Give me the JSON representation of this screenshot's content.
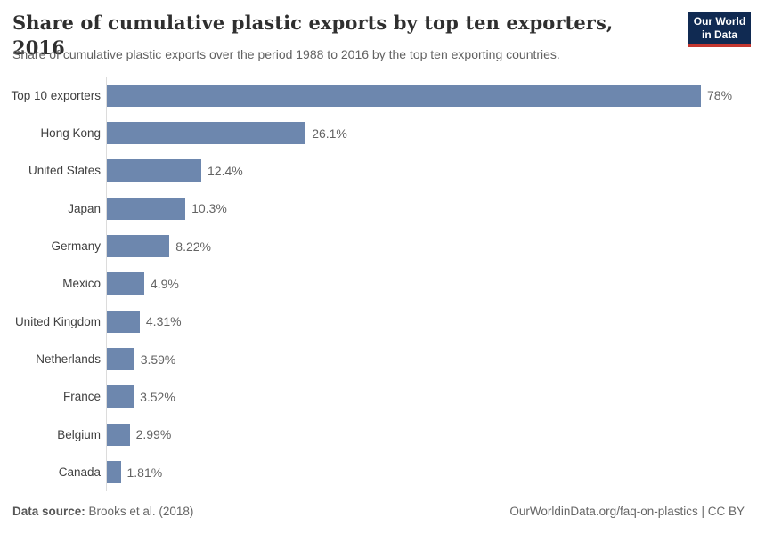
{
  "header": {
    "title": "Share of cumulative plastic exports by top ten exporters, 2016",
    "subtitle": "Share of cumulative plastic exports over the period 1988 to 2016 by the top ten exporting countries."
  },
  "logo": {
    "line1": "Our World",
    "line2": "in Data"
  },
  "chart_data": {
    "type": "bar",
    "orientation": "horizontal",
    "title": "Share of cumulative plastic exports by top ten exporters, 2016",
    "categories": [
      "Top 10 exporters",
      "Hong Kong",
      "United States",
      "Japan",
      "Germany",
      "Mexico",
      "United Kingdom",
      "Netherlands",
      "France",
      "Belgium",
      "Canada"
    ],
    "values": [
      78,
      26.1,
      12.4,
      10.3,
      8.22,
      4.9,
      4.31,
      3.59,
      3.52,
      2.99,
      1.81
    ],
    "value_labels": [
      "78%",
      "26.1%",
      "12.4%",
      "10.3%",
      "8.22%",
      "4.9%",
      "4.31%",
      "3.59%",
      "3.52%",
      "2.99%",
      "1.81%"
    ],
    "unit": "%",
    "xlabel": "",
    "ylabel": "",
    "xlim": [
      0,
      78
    ],
    "grid": false,
    "legend": "none"
  },
  "footer": {
    "datasource_label": "Data source:",
    "datasource_value": "Brooks et al. (2018)",
    "link": "OurWorldinData.org/faq-on-plastics | CC BY"
  },
  "colors": {
    "bar": "#6d87ae",
    "logo_navy": "#102a52",
    "logo_red": "#c43730",
    "axis_line": "#dcdcdc"
  }
}
